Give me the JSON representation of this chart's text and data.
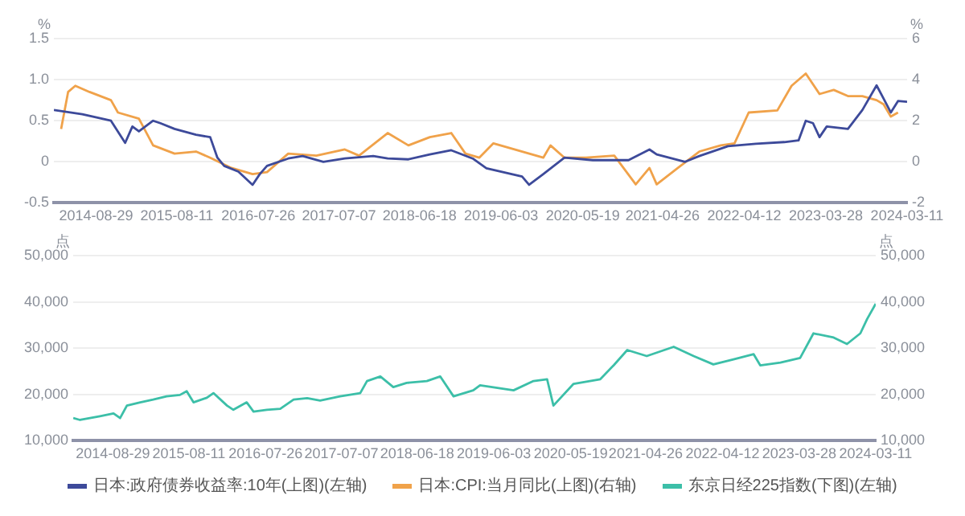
{
  "chart_data": [
    {
      "type": "line",
      "ylabel": "%",
      "y2label": "%",
      "xlim": [
        "2014-03-01",
        "2024-03-11"
      ],
      "xticks": [
        "2014-08-29",
        "2015-08-11",
        "2016-07-26",
        "2017-07-07",
        "2018-06-18",
        "2019-06-03",
        "2020-05-19",
        "2021-04-26",
        "2022-04-12",
        "2023-03-28",
        "2024-03-11"
      ],
      "ylim": [
        -0.5,
        1.5
      ],
      "yticks": [
        -0.5,
        0,
        0.5,
        {
          "value": 1,
          "label": "1.0"
        },
        1.5
      ],
      "y2lim": [
        -2,
        6
      ],
      "y2ticks": [
        -2,
        0,
        2,
        4,
        6
      ],
      "grid": "y",
      "legend": "bottom",
      "series": [
        {
          "name": "日本:政府债券收益率:10年(上图)(左轴)",
          "color": "#3d4a9a",
          "x": [
            "2014-03",
            "2014-07",
            "2014-11",
            "2015-01",
            "2015-02",
            "2015-03",
            "2015-05",
            "2015-06",
            "2015-08",
            "2015-11",
            "2016-01",
            "2016-02",
            "2016-03",
            "2016-05",
            "2016-07",
            "2016-08",
            "2016-09",
            "2016-12",
            "2017-02",
            "2017-05",
            "2017-08",
            "2017-12",
            "2018-02",
            "2018-05",
            "2018-08",
            "2018-11",
            "2019-02",
            "2019-04",
            "2019-09",
            "2019-10",
            "2019-12",
            "2020-03",
            "2020-07",
            "2020-12",
            "2021-03",
            "2021-04",
            "2021-08",
            "2021-10",
            "2022-02",
            "2022-06",
            "2022-10",
            "2022-12",
            "2023-01",
            "2023-02",
            "2023-03",
            "2023-04",
            "2023-07",
            "2023-09",
            "2023-11",
            "2023-12",
            "2024-01",
            "2024-02",
            "2024-03-11"
          ],
          "values": [
            0.63,
            0.58,
            0.5,
            0.23,
            0.43,
            0.37,
            0.5,
            0.47,
            0.4,
            0.33,
            0.3,
            0.05,
            -0.05,
            -0.12,
            -0.28,
            -0.15,
            -0.05,
            0.04,
            0.07,
            0,
            0.04,
            0.07,
            0.04,
            0.03,
            0.09,
            0.14,
            0.04,
            -0.08,
            -0.18,
            -0.28,
            -0.15,
            0.05,
            0.02,
            0.02,
            0.15,
            0.09,
            0,
            0.07,
            0.19,
            0.22,
            0.24,
            0.26,
            0.5,
            0.47,
            0.3,
            0.43,
            0.4,
            0.63,
            0.93,
            0.77,
            0.6,
            0.74,
            0.73
          ]
        },
        {
          "name": "日本:CPI:当月同比(上图)(右轴)",
          "color": "#f0a24a",
          "axis": "y2",
          "x": [
            "2014-04",
            "2014-05",
            "2014-06",
            "2014-08",
            "2014-11",
            "2014-12",
            "2015-03",
            "2015-05",
            "2015-08",
            "2015-11",
            "2016-01",
            "2016-04",
            "2016-07",
            "2016-09",
            "2016-12",
            "2017-04",
            "2017-08",
            "2017-10",
            "2018-02",
            "2018-05",
            "2018-08",
            "2018-11",
            "2019-01",
            "2019-03",
            "2019-05",
            "2019-12",
            "2020-01",
            "2020-03",
            "2020-06",
            "2020-10",
            "2021-01",
            "2021-03",
            "2021-04",
            "2021-07",
            "2021-10",
            "2022-01",
            "2022-03",
            "2022-05",
            "2022-09",
            "2022-11",
            "2023-01",
            "2023-03",
            "2023-05",
            "2023-07",
            "2023-09",
            "2023-11",
            "2023-12",
            "2024-01",
            "2024-02"
          ],
          "values": [
            1.6,
            3.4,
            3.7,
            3.4,
            3.0,
            2.4,
            2.1,
            0.8,
            0.4,
            0.5,
            0.2,
            -0.3,
            -0.6,
            -0.5,
            0.4,
            0.3,
            0.6,
            0.3,
            1.4,
            0.8,
            1.2,
            1.4,
            0.4,
            0.2,
            0.9,
            0.2,
            0.8,
            0.2,
            0.2,
            0.3,
            -1.1,
            -0.3,
            -1.1,
            -0.3,
            0.5,
            0.8,
            0.9,
            2.4,
            2.5,
            3.7,
            4.3,
            3.3,
            3.5,
            3.2,
            3.2,
            3.0,
            2.8,
            2.2,
            2.4
          ]
        }
      ]
    },
    {
      "type": "line",
      "ylabel": "点",
      "y2label": "点",
      "xlim": [
        "2014-03-01",
        "2024-03-11"
      ],
      "xticks": [
        "2014-08-29",
        "2015-08-11",
        "2016-07-26",
        "2017-07-07",
        "2018-06-18",
        "2019-06-03",
        "2020-05-19",
        "2021-04-26",
        "2022-04-12",
        "2023-03-28",
        "2024-03-11"
      ],
      "ylim": [
        10000,
        50000
      ],
      "yticks": [
        {
          "value": 10000,
          "label": "10,000"
        },
        {
          "value": 20000,
          "label": "20,000"
        },
        {
          "value": 30000,
          "label": "30,000"
        },
        {
          "value": 40000,
          "label": "40,000"
        },
        {
          "value": 50000,
          "label": "50,000"
        }
      ],
      "y2lim": [
        10000,
        50000
      ],
      "y2ticks": [
        {
          "value": 10000,
          "label": "10,000"
        },
        {
          "value": 20000,
          "label": "20,000"
        },
        {
          "value": 30000,
          "label": "30,000"
        },
        {
          "value": 40000,
          "label": "40,000"
        },
        {
          "value": 50000,
          "label": "50,000"
        }
      ],
      "grid": "y",
      "legend": "bottom",
      "series": [
        {
          "name": "东京日经225指数(下图)(左轴)",
          "color": "#3cbfa8",
          "x": [
            "2014-03",
            "2014-04",
            "2014-07",
            "2014-09",
            "2014-10",
            "2014-11",
            "2015-01",
            "2015-03",
            "2015-05",
            "2015-07",
            "2015-08",
            "2015-09",
            "2015-11",
            "2015-12",
            "2016-02",
            "2016-03",
            "2016-05",
            "2016-06",
            "2016-08",
            "2016-10",
            "2016-12",
            "2017-02",
            "2017-04",
            "2017-07",
            "2017-10",
            "2017-11",
            "2018-01",
            "2018-03",
            "2018-05",
            "2018-08",
            "2018-10",
            "2018-12",
            "2019-03",
            "2019-04",
            "2019-09",
            "2019-12",
            "2020-02",
            "2020-03",
            "2020-06",
            "2020-10",
            "2020-12",
            "2021-02",
            "2021-05",
            "2021-09",
            "2021-12",
            "2022-03",
            "2022-06",
            "2022-09",
            "2022-10",
            "2023-01",
            "2023-04",
            "2023-06",
            "2023-09",
            "2023-11",
            "2024-01",
            "2024-02",
            "2024-03-11"
          ],
          "values": [
            14900,
            14500,
            15300,
            15900,
            14900,
            17600,
            18300,
            18900,
            19600,
            19900,
            20700,
            18300,
            19300,
            20300,
            17600,
            16700,
            18300,
            16300,
            16700,
            16900,
            18900,
            19200,
            18700,
            19600,
            20300,
            22900,
            23900,
            21600,
            22500,
            22900,
            23900,
            19600,
            20900,
            22000,
            20900,
            22900,
            23300,
            17600,
            22300,
            23300,
            26300,
            29600,
            28300,
            30300,
            28300,
            26500,
            27600,
            28700,
            26300,
            26900,
            27900,
            33200,
            32300,
            30900,
            33200,
            36300,
            39600
          ]
        }
      ]
    }
  ]
}
